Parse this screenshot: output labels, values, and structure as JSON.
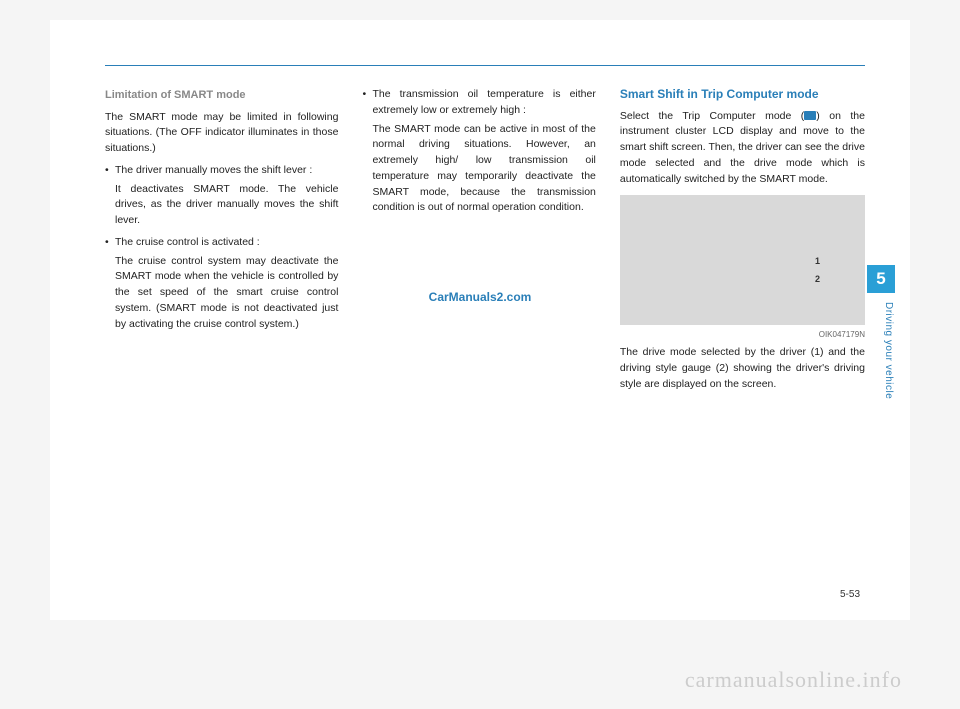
{
  "page": {
    "number": "5-53",
    "side_tab": "5",
    "side_label": "Driving your vehicle"
  },
  "col1": {
    "heading": "Limitation of SMART mode",
    "p1": "The SMART mode may be limited in following situations. (The OFF indicator illuminates in those situations.)",
    "b1": "The driver manually moves the shift lever :",
    "b1_body": "It deactivates SMART mode. The vehicle drives, as the driver manually moves the shift lever.",
    "b2": "The cruise control is activated :",
    "b2_body": "The cruise control system may deactivate the SMART mode when the vehicle is controlled by the set speed of the smart cruise control system. (SMART mode is not deactivated just by activating the cruise control system.)"
  },
  "col2": {
    "b1": "The transmission oil temperature is either extremely low or extremely high :",
    "b1_body": "The SMART mode can be active in most of the normal driving situations. However, an extremely high/ low transmission oil temperature may temporarily deactivate the SMART mode, because the transmission condition is out of normal operation condition."
  },
  "col3": {
    "heading": "Smart Shift in Trip Computer mode",
    "p1a": "Select the Trip Computer mode (",
    "p1b": ") on the instrument cluster LCD display and move to the smart shift screen. Then, the driver can see the drive mode selected and the drive mode which is automatically switched by the SMART mode.",
    "fig_label1": "1",
    "fig_label2": "2",
    "fig_code": "OIK047179N",
    "p2": "The drive mode selected by the driver (1) and the driving style gauge (2) showing the driver's driving style are displayed on the screen."
  },
  "watermarks": {
    "center": "CarManuals2.com",
    "footer": "carmanualsonline.info"
  }
}
